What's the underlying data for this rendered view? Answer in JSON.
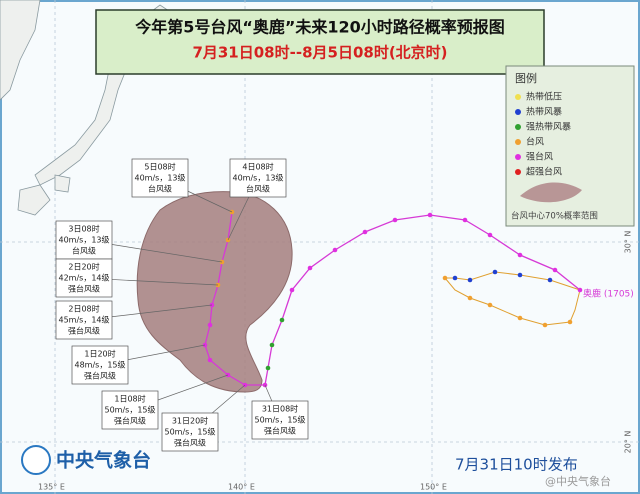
{
  "header": {
    "title": "今年第5号台风“奥鹿”未来120小时路径概率预报图",
    "subtitle": "7月31日08时--8月5日08时(北京时)"
  },
  "legend": {
    "title": "图例",
    "items": [
      "热带低压",
      "热带风暴",
      "强热带风暴",
      "台风",
      "强台风",
      "超强台风"
    ],
    "area_label": "台风中心70%概率范围"
  },
  "forecasts": [
    {
      "lines": [
        "5日08时",
        "40m/s，13级",
        "台风级"
      ]
    },
    {
      "lines": [
        "4日08时",
        "40m/s，13级",
        "台风级"
      ]
    },
    {
      "lines": [
        "3日08时",
        "40m/s，13级",
        "台风级"
      ]
    },
    {
      "lines": [
        "2日20时",
        "42m/s，14级",
        "强台风级"
      ]
    },
    {
      "lines": [
        "2日08时",
        "45m/s，14级",
        "强台风级"
      ]
    },
    {
      "lines": [
        "1日20时",
        "48m/s，15级",
        "强台风级"
      ]
    },
    {
      "lines": [
        "1日08时",
        "50m/s，15级",
        "强台风级"
      ]
    },
    {
      "lines": [
        "31日20时",
        "50m/s，15级",
        "强台风级"
      ]
    },
    {
      "lines": [
        "31日08时",
        "50m/s，15级",
        "强台风级"
      ]
    }
  ],
  "typhoon_label": "奥鹿 (1705)",
  "axis_labels": [
    "135° E",
    "140° E",
    "150° E",
    "30° N",
    "20° N"
  ],
  "footer": {
    "agency": "中央气象台",
    "issued": "7月31日10时发布",
    "watermark": "@中央气象台"
  }
}
